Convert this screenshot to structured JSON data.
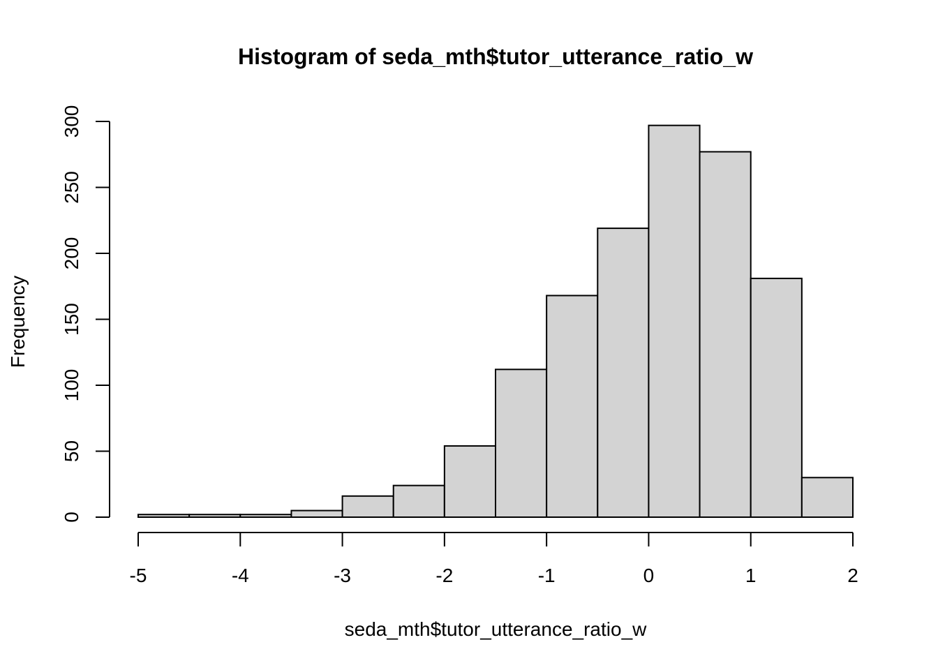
{
  "chart_data": {
    "type": "bar",
    "title": "Histogram of seda_mth$tutor_utterance_ratio_w",
    "xlabel": "seda_mth$tutor_utterance_ratio_w",
    "ylabel": "Frequency",
    "xlim": [
      -5,
      2
    ],
    "ylim": [
      0,
      300
    ],
    "x_ticks": [
      "-5",
      "-4",
      "-3",
      "-2",
      "-1",
      "0",
      "1",
      "2"
    ],
    "y_ticks": [
      "0",
      "50",
      "100",
      "150",
      "200",
      "250",
      "300"
    ],
    "bins": [
      {
        "start": -5.0,
        "end": -4.5,
        "count": 2
      },
      {
        "start": -4.5,
        "end": -4.0,
        "count": 2
      },
      {
        "start": -4.0,
        "end": -3.5,
        "count": 2
      },
      {
        "start": -3.5,
        "end": -3.0,
        "count": 5
      },
      {
        "start": -3.0,
        "end": -2.5,
        "count": 16
      },
      {
        "start": -2.5,
        "end": -2.0,
        "count": 24
      },
      {
        "start": -2.0,
        "end": -1.5,
        "count": 54
      },
      {
        "start": -1.5,
        "end": -1.0,
        "count": 112
      },
      {
        "start": -1.0,
        "end": -0.5,
        "count": 168
      },
      {
        "start": -0.5,
        "end": 0.0,
        "count": 219
      },
      {
        "start": 0.0,
        "end": 0.5,
        "count": 297
      },
      {
        "start": 0.5,
        "end": 1.0,
        "count": 277
      },
      {
        "start": 1.0,
        "end": 1.5,
        "count": 181
      },
      {
        "start": 1.5,
        "end": 2.0,
        "count": 30
      }
    ],
    "grid": false,
    "bar_fill": "#d3d3d3",
    "bar_stroke": "#000000"
  }
}
